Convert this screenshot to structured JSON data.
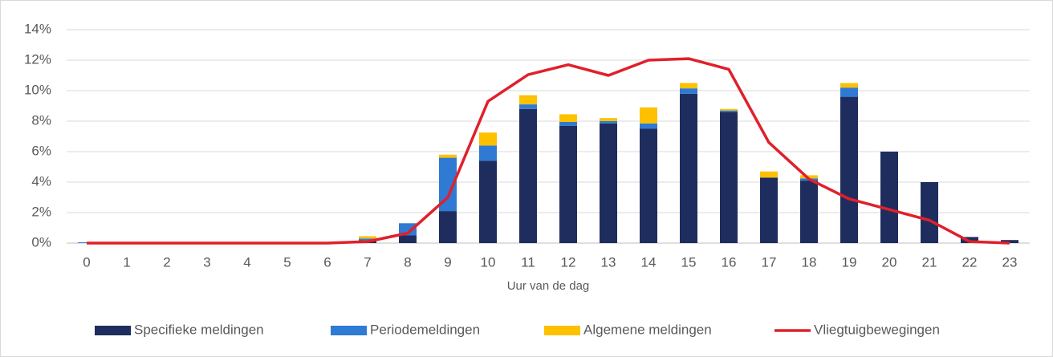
{
  "chart_data": {
    "type": "bar-line",
    "xlabel": "Uur van de dag",
    "categories": [
      "0",
      "1",
      "2",
      "3",
      "4",
      "5",
      "6",
      "7",
      "8",
      "9",
      "10",
      "11",
      "12",
      "13",
      "14",
      "15",
      "16",
      "17",
      "18",
      "19",
      "20",
      "21",
      "22",
      "23"
    ],
    "series": [
      {
        "name": "Specifieke meldingen",
        "type": "bar",
        "color": "#1f2d5e",
        "values": [
          0,
          0,
          0,
          0,
          0,
          0,
          0,
          0.2,
          0.5,
          2.1,
          5.4,
          8.8,
          7.7,
          7.85,
          7.5,
          9.8,
          8.6,
          4.3,
          4.1,
          9.6,
          6.0,
          4.0,
          0.4,
          0.2
        ]
      },
      {
        "name": "Periodemeldingen",
        "type": "bar",
        "color": "#2f7ad2",
        "values": [
          0.05,
          0,
          0,
          0,
          0,
          0,
          0,
          0.1,
          0.8,
          3.5,
          1.0,
          0.3,
          0.25,
          0.15,
          0.35,
          0.35,
          0.1,
          0,
          0.15,
          0.6,
          0,
          0,
          0,
          0
        ]
      },
      {
        "name": "Algemene meldingen",
        "type": "bar",
        "color": "#ffc000",
        "values": [
          0,
          0,
          0,
          0,
          0,
          0,
          0,
          0.15,
          0,
          0.2,
          0.85,
          0.6,
          0.5,
          0.2,
          1.05,
          0.35,
          0.1,
          0.4,
          0.2,
          0.3,
          0,
          0,
          0,
          0
        ]
      },
      {
        "name": "Vliegtuigbewegingen",
        "type": "line",
        "color": "#e0202b",
        "values": [
          0,
          0,
          0,
          0,
          0,
          0,
          0,
          0.1,
          0.65,
          3.0,
          9.3,
          11.05,
          11.7,
          11.0,
          12.0,
          12.1,
          11.4,
          6.6,
          4.2,
          2.9,
          2.2,
          1.5,
          0.1,
          0
        ]
      }
    ],
    "ylim": [
      0,
      14
    ],
    "yticks": [
      {
        "value": 0,
        "label": "0%"
      },
      {
        "value": 2,
        "label": "2%"
      },
      {
        "value": 4,
        "label": "4%"
      },
      {
        "value": 6,
        "label": "6%"
      },
      {
        "value": 8,
        "label": "8%"
      },
      {
        "value": 10,
        "label": "10%"
      },
      {
        "value": 12,
        "label": "12%"
      },
      {
        "value": 14,
        "label": "14%"
      }
    ],
    "grid": true,
    "stacked": true,
    "legend": "bottom"
  }
}
